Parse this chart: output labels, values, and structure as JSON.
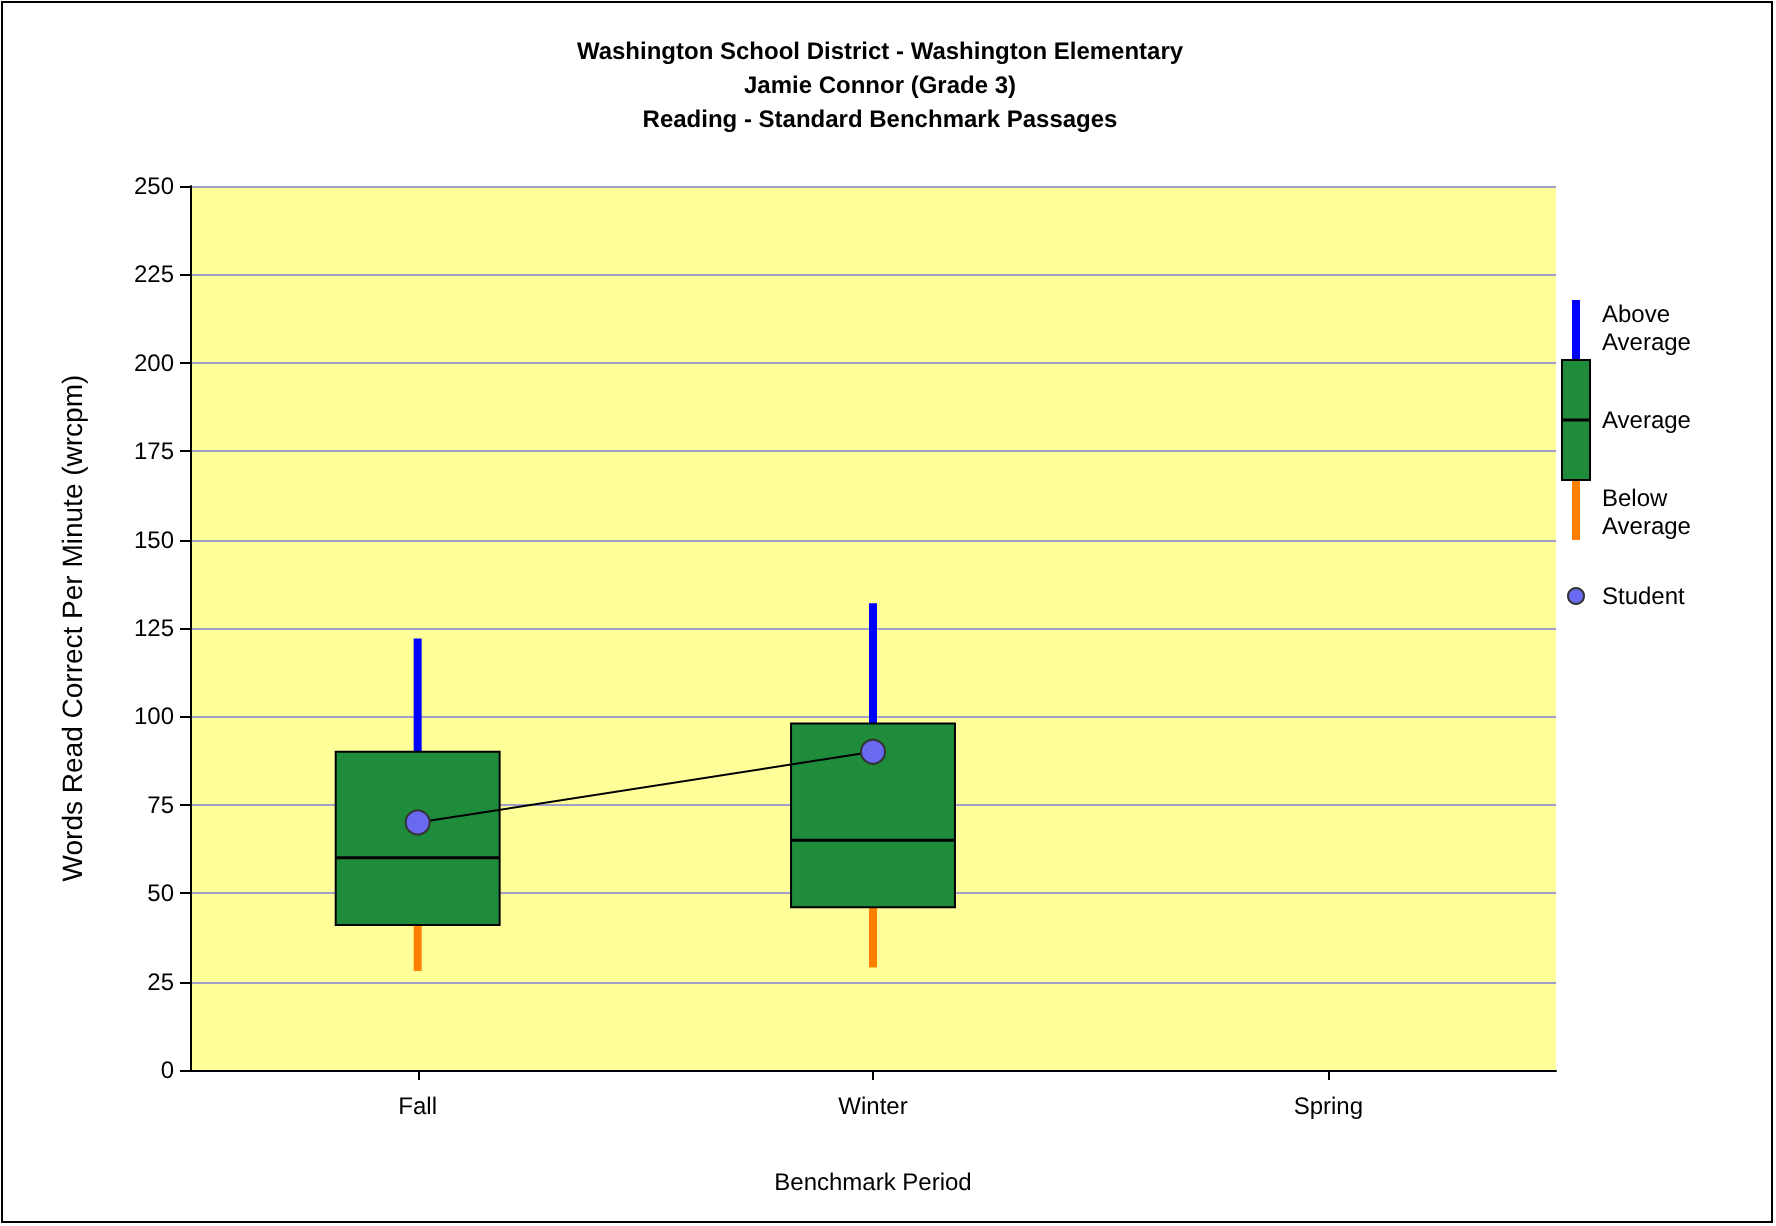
{
  "chart_data": {
    "type": "box",
    "title": "Washington School District - Washington Elementary\nJamie Connor (Grade 3)\nReading - Standard Benchmark Passages",
    "xlabel": "Benchmark Period",
    "ylabel": "Words Read Correct Per Minute (wrcpm)",
    "categories": [
      "Fall",
      "Winter",
      "Spring"
    ],
    "ylim": [
      0,
      250
    ],
    "yticks": [
      0,
      25,
      50,
      75,
      100,
      125,
      150,
      175,
      200,
      225,
      250
    ],
    "grid": "y",
    "legend": "right",
    "series": [
      {
        "name": "Average",
        "color": "#1e8c3a",
        "boxes": [
          {
            "low": 28,
            "q1": 41,
            "median": 60,
            "q3": 90,
            "high": 122
          },
          {
            "low": 29,
            "q1": 46,
            "median": 65,
            "q3": 98,
            "high": 132
          },
          null
        ]
      },
      {
        "name": "Student",
        "type": "line",
        "color": "#6a6af0",
        "marker": "circle",
        "values": [
          70,
          90,
          null
        ]
      }
    ],
    "annotations": [
      "Above Average",
      "Below Average"
    ]
  }
}
